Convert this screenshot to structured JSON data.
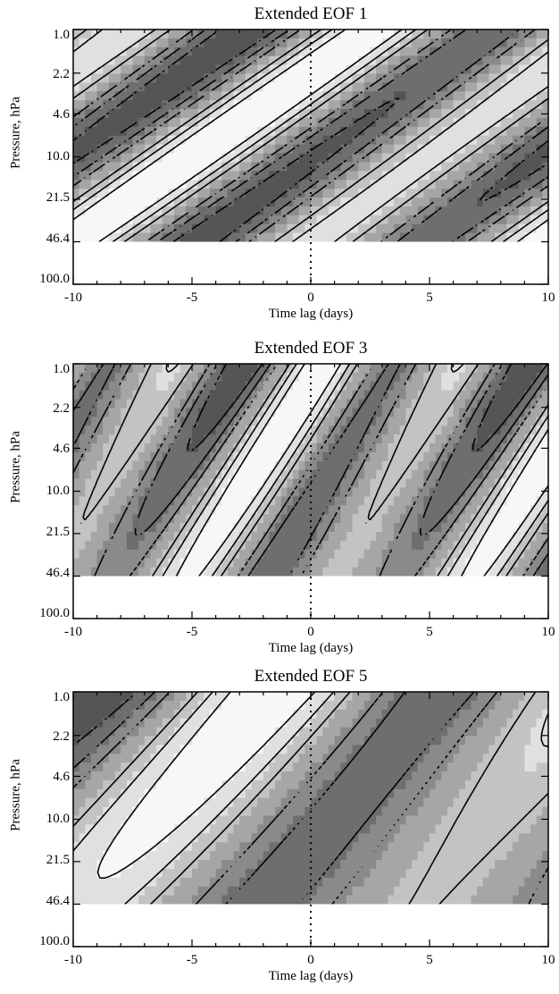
{
  "chart_data": [
    {
      "type": "heatmap",
      "title": "Extended EOF 1",
      "xlabel": "Time lag (days)",
      "ylabel": "Pressure, hPa",
      "x_ticks": [
        -10,
        -5,
        0,
        5,
        10
      ],
      "x_tick_labels": [
        "-10",
        "-5",
        "0",
        "5",
        "10"
      ],
      "y_ticks": [
        1.0,
        2.2,
        4.6,
        10.0,
        21.5,
        46.4,
        100.0
      ],
      "y_tick_labels": [
        "1.0",
        "2.2",
        "4.6",
        "10.0",
        "21.5",
        "46.4",
        "100.0"
      ],
      "xlim": [
        -10,
        10
      ],
      "ylim": [
        100.0,
        1.0
      ],
      "y_scale": "log",
      "data_ylim": [
        46.4,
        1.0
      ],
      "zero_line_x": 0,
      "style": {
        "line_type": "tilted_bands",
        "period_days": 10,
        "phase": 0,
        "tilt": 1.25,
        "amp": 1.0,
        "damp": 0.05,
        "secondary": 0.25
      }
    },
    {
      "type": "heatmap",
      "title": "Extended EOF 3",
      "xlabel": "Time lag (days)",
      "ylabel": "Pressure, hPa",
      "x_ticks": [
        -10,
        -5,
        0,
        5,
        10
      ],
      "x_tick_labels": [
        "-10",
        "-5",
        "0",
        "5",
        "10"
      ],
      "y_ticks": [
        1.0,
        2.2,
        4.6,
        10.0,
        21.5,
        46.4,
        100.0
      ],
      "y_tick_labels": [
        "1.0",
        "2.2",
        "4.6",
        "10.0",
        "21.5",
        "46.4",
        "100.0"
      ],
      "xlim": [
        -10,
        10
      ],
      "ylim": [
        100.0,
        1.0
      ],
      "y_scale": "log",
      "data_ylim": [
        46.4,
        1.0
      ],
      "zero_line_x": 0,
      "style": {
        "line_type": "tilted_bands",
        "period_days": 6,
        "phase": 1.2,
        "tilt": 0.9,
        "amp": 0.9,
        "damp": 0.35,
        "secondary": 0.4
      }
    },
    {
      "type": "heatmap",
      "title": "Extended EOF 5",
      "xlabel": "Time lag (days)",
      "ylabel": "Pressure, hPa",
      "x_ticks": [
        -10,
        -5,
        0,
        5,
        10
      ],
      "x_tick_labels": [
        "-10",
        "-5",
        "0",
        "5",
        "10"
      ],
      "y_ticks": [
        1.0,
        2.2,
        4.6,
        10.0,
        21.5,
        46.4,
        100.0
      ],
      "y_tick_labels": [
        "1.0",
        "2.2",
        "4.6",
        "10.0",
        "21.5",
        "46.4",
        "100.0"
      ],
      "xlim": [
        -10,
        10
      ],
      "ylim": [
        100.0,
        1.0
      ],
      "y_scale": "log",
      "data_ylim": [
        46.4,
        1.0
      ],
      "zero_line_x": 0,
      "style": {
        "line_type": "tilted_bands",
        "period_days": 14,
        "phase": 2.4,
        "tilt": 0.55,
        "amp": 1.0,
        "damp": 0.55,
        "secondary": 0.3
      }
    }
  ],
  "colors": {
    "level_fills": [
      "#555555",
      "#6e6e6e",
      "#8a8a8a",
      "#a6a6a6",
      "#c3c3c3",
      "#e0e0e0",
      "#f7f7f7"
    ],
    "axis": "#000000",
    "contour": "#000000"
  }
}
